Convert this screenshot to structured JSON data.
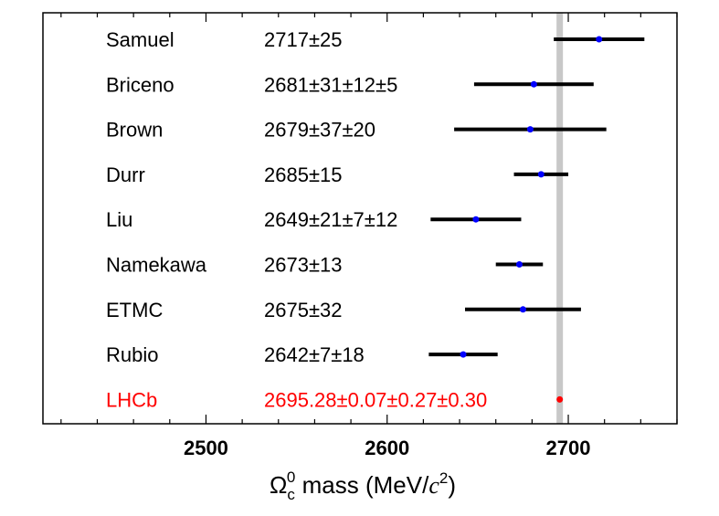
{
  "chart_data": {
    "type": "scatter",
    "title": "",
    "xlabel_parts": {
      "symbol": "Ω",
      "subscript": "c",
      "superscript": "0",
      "text": " mass (MeV/",
      "unit_symbol": "c",
      "unit_power": "2",
      "close": ")"
    },
    "xlim": [
      2410,
      2760
    ],
    "xticks": [
      2500,
      2600,
      2700
    ],
    "xtick_labels": [
      "2500",
      "2600",
      "2700"
    ],
    "reference_value": 2695.28,
    "rows": [
      {
        "name": "Samuel",
        "label": "2717±25",
        "center": 2717,
        "low": 2692,
        "high": 2742,
        "color": "#000000"
      },
      {
        "name": "Briceno",
        "label": "2681±31±12±5",
        "center": 2681,
        "low": 2648,
        "high": 2714,
        "color": "#000000"
      },
      {
        "name": "Brown",
        "label": "2679±37±20",
        "center": 2679,
        "low": 2637,
        "high": 2721,
        "color": "#000000"
      },
      {
        "name": "Durr",
        "label": "2685±15",
        "center": 2685,
        "low": 2670,
        "high": 2700,
        "color": "#000000"
      },
      {
        "name": "Liu",
        "label": "2649±21±7±12",
        "center": 2649,
        "low": 2624,
        "high": 2674,
        "color": "#000000"
      },
      {
        "name": "Namekawa",
        "label": "2673±13",
        "center": 2673,
        "low": 2660,
        "high": 2686,
        "color": "#000000"
      },
      {
        "name": "ETMC",
        "label": "2675±32",
        "center": 2675,
        "low": 2643,
        "high": 2707,
        "color": "#000000"
      },
      {
        "name": "Rubio",
        "label": "2642±7±18",
        "center": 2642,
        "low": 2623,
        "high": 2661,
        "color": "#000000"
      },
      {
        "name": "LHCb",
        "label": "2695.28±0.07±0.27±0.30",
        "center": 2695.28,
        "low": 2695.28,
        "high": 2695.28,
        "color": "#ff0000"
      }
    ],
    "colors": {
      "point": "#0000ff",
      "errorbar": "#000000",
      "highlight": "#ff0000",
      "band": "#c8c8c8"
    }
  }
}
